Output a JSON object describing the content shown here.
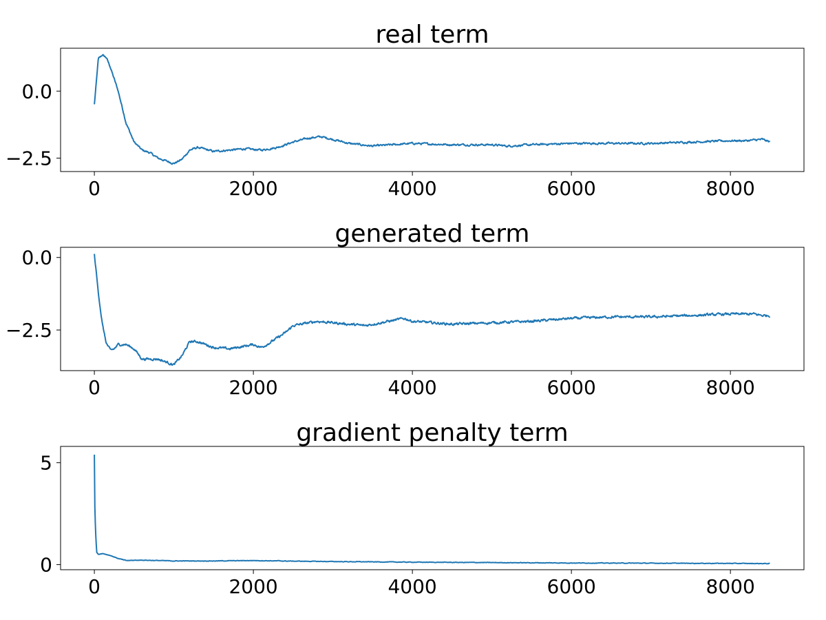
{
  "chart_data": [
    {
      "type": "line",
      "title": "real term",
      "xlabel": "",
      "ylabel": "",
      "xlim": [
        -425,
        8925
      ],
      "ylim": [
        -3.0,
        1.6
      ],
      "xticks": [
        0,
        2000,
        4000,
        6000,
        8000
      ],
      "xtick_labels": [
        "0",
        "2000",
        "4000",
        "6000",
        "8000"
      ],
      "yticks": [
        0.0,
        -2.5
      ],
      "ytick_labels": [
        "0.0",
        "−2.5"
      ],
      "grid": false,
      "series": [
        {
          "color": "#1f77b4",
          "noise": 0.07,
          "x": [
            0,
            50,
            100,
            150,
            200,
            300,
            400,
            500,
            600,
            700,
            800,
            900,
            1000,
            1100,
            1200,
            1300,
            1500,
            1700,
            1900,
            2100,
            2300,
            2500,
            2700,
            2850,
            3000,
            3200,
            3500,
            4000,
            4500,
            5000,
            5200,
            5500,
            6000,
            6500,
            7000,
            7500,
            8000,
            8200,
            8400,
            8500
          ],
          "y": [
            -0.5,
            1.2,
            1.35,
            1.25,
            0.9,
            0.0,
            -1.2,
            -1.9,
            -2.2,
            -2.3,
            -2.5,
            -2.6,
            -2.7,
            -2.55,
            -2.2,
            -2.1,
            -2.25,
            -2.2,
            -2.15,
            -2.2,
            -2.1,
            -1.9,
            -1.75,
            -1.7,
            -1.8,
            -1.95,
            -2.05,
            -1.95,
            -2.0,
            -2.0,
            -2.05,
            -2.0,
            -1.95,
            -1.95,
            -1.95,
            -1.9,
            -1.85,
            -1.85,
            -1.8,
            -1.9
          ]
        }
      ]
    },
    {
      "type": "line",
      "title": "generated term",
      "xlabel": "",
      "ylabel": "",
      "xlim": [
        -425,
        8925
      ],
      "ylim": [
        -3.9,
        0.35
      ],
      "xticks": [
        0,
        2000,
        4000,
        6000,
        8000
      ],
      "xtick_labels": [
        "0",
        "2000",
        "4000",
        "6000",
        "8000"
      ],
      "yticks": [
        0.0,
        -2.5
      ],
      "ytick_labels": [
        "0.0",
        "−2.5"
      ],
      "grid": false,
      "series": [
        {
          "color": "#1f77b4",
          "noise": 0.08,
          "x": [
            0,
            50,
            100,
            150,
            200,
            250,
            300,
            400,
            500,
            600,
            700,
            800,
            900,
            1000,
            1100,
            1200,
            1300,
            1500,
            1700,
            1900,
            2000,
            2100,
            2200,
            2400,
            2500,
            2700,
            2800,
            3000,
            3200,
            3400,
            3600,
            3800,
            3900,
            4000,
            4500,
            5000,
            5500,
            6000,
            6500,
            7000,
            7500,
            8000,
            8300,
            8400,
            8500
          ],
          "y": [
            0.1,
            -1.2,
            -2.3,
            -2.95,
            -3.2,
            -3.15,
            -3.0,
            -3.0,
            -3.15,
            -3.5,
            -3.5,
            -3.5,
            -3.6,
            -3.7,
            -3.4,
            -2.9,
            -2.9,
            -3.1,
            -3.15,
            -3.05,
            -3.0,
            -3.1,
            -2.95,
            -2.6,
            -2.35,
            -2.25,
            -2.2,
            -2.25,
            -2.3,
            -2.35,
            -2.25,
            -2.15,
            -2.1,
            -2.2,
            -2.3,
            -2.25,
            -2.2,
            -2.1,
            -2.05,
            -2.05,
            -2.0,
            -1.95,
            -1.95,
            -2.0,
            -2.0
          ]
        }
      ]
    },
    {
      "type": "line",
      "title": "gradient penalty term",
      "xlabel": "",
      "ylabel": "",
      "xlim": [
        -425,
        8925
      ],
      "ylim": [
        -0.25,
        5.8
      ],
      "xticks": [
        0,
        2000,
        4000,
        6000,
        8000
      ],
      "xtick_labels": [
        "0",
        "2000",
        "4000",
        "6000",
        "8000"
      ],
      "yticks": [
        5,
        0
      ],
      "ytick_labels": [
        "5",
        "0"
      ],
      "grid": false,
      "series": [
        {
          "color": "#1f77b4",
          "noise": 0.025,
          "x": [
            0,
            5,
            10,
            20,
            30,
            50,
            100,
            200,
            300,
            400,
            600,
            1000,
            1500,
            2000,
            2500,
            3000,
            4000,
            5000,
            6000,
            7000,
            8000,
            8500
          ],
          "y": [
            5.4,
            3.0,
            2.2,
            1.2,
            0.6,
            0.5,
            0.55,
            0.45,
            0.3,
            0.2,
            0.22,
            0.18,
            0.18,
            0.2,
            0.17,
            0.15,
            0.12,
            0.1,
            0.08,
            0.07,
            0.06,
            0.05
          ]
        }
      ]
    }
  ]
}
